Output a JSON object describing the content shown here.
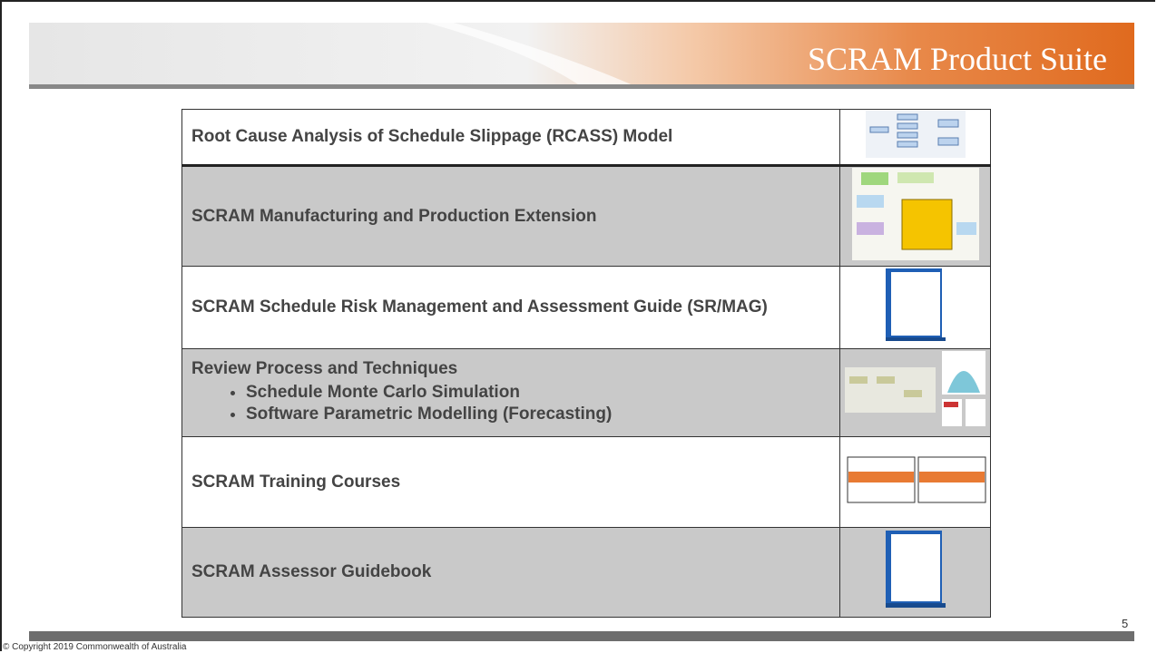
{
  "header": {
    "title": "SCRAM Product Suite"
  },
  "table": {
    "rows": [
      {
        "text": "Root Cause Analysis of Schedule Slippage (RCASS) Model"
      },
      {
        "text": "SCRAM Manufacturing and Production Extension"
      },
      {
        "text": "SCRAM Schedule Risk Management and Assessment Guide (SR/MAG)"
      },
      {
        "text": "Review Process and Techniques",
        "bullets": [
          "Schedule Monte Carlo Simulation",
          "Software Parametric Modelling (Forecasting)"
        ]
      },
      {
        "text": "SCRAM Training Courses"
      },
      {
        "text": "SCRAM Assessor Guidebook"
      }
    ]
  },
  "footer": {
    "page_number": "5",
    "copyright": "© Copyright 2019 Commonwealth of Australia"
  }
}
